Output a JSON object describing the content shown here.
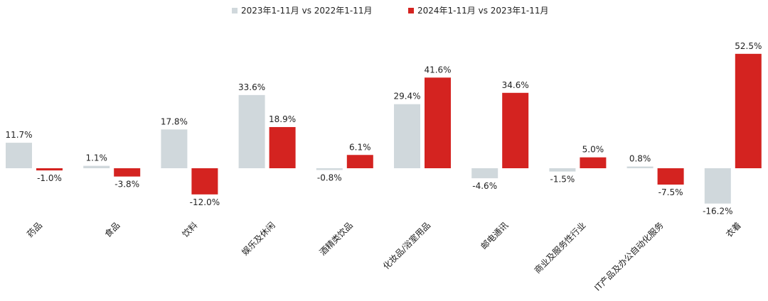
{
  "chart_data": {
    "type": "bar",
    "categories": [
      "药品",
      "食品",
      "饮料",
      "娱乐及休闲",
      "酒精类饮品",
      "化妆品/浴室用品",
      "邮电通讯",
      "商业及服务性行业",
      "IT产品及办公自动化服务",
      "衣着"
    ],
    "series": [
      {
        "name": "2023年1-11月 vs 2022年1-11月",
        "color": "#D0D8DC",
        "values": [
          11.7,
          1.1,
          17.8,
          33.6,
          -0.8,
          29.4,
          -4.6,
          -1.5,
          0.8,
          -16.2
        ]
      },
      {
        "name": "2024年1-11月 vs 2023年1-11月",
        "color": "#D42320",
        "values": [
          -1.0,
          -3.8,
          -12.0,
          18.9,
          6.1,
          41.6,
          34.6,
          5.0,
          -7.5,
          52.5
        ]
      }
    ],
    "value_format": "percent_1dp",
    "legend_position": "top-center",
    "grid": false
  },
  "labels": {
    "s0": [
      "11.7%",
      "1.1%",
      "17.8%",
      "33.6%",
      "-0.8%",
      "29.4%",
      "-4.6%",
      "-1.5%",
      "0.8%",
      "-16.2%"
    ],
    "s1": [
      "-1.0%",
      "-3.8%",
      "-12.0%",
      "18.9%",
      "6.1%",
      "41.6%",
      "34.6%",
      "5.0%",
      "-7.5%",
      "52.5%"
    ]
  }
}
